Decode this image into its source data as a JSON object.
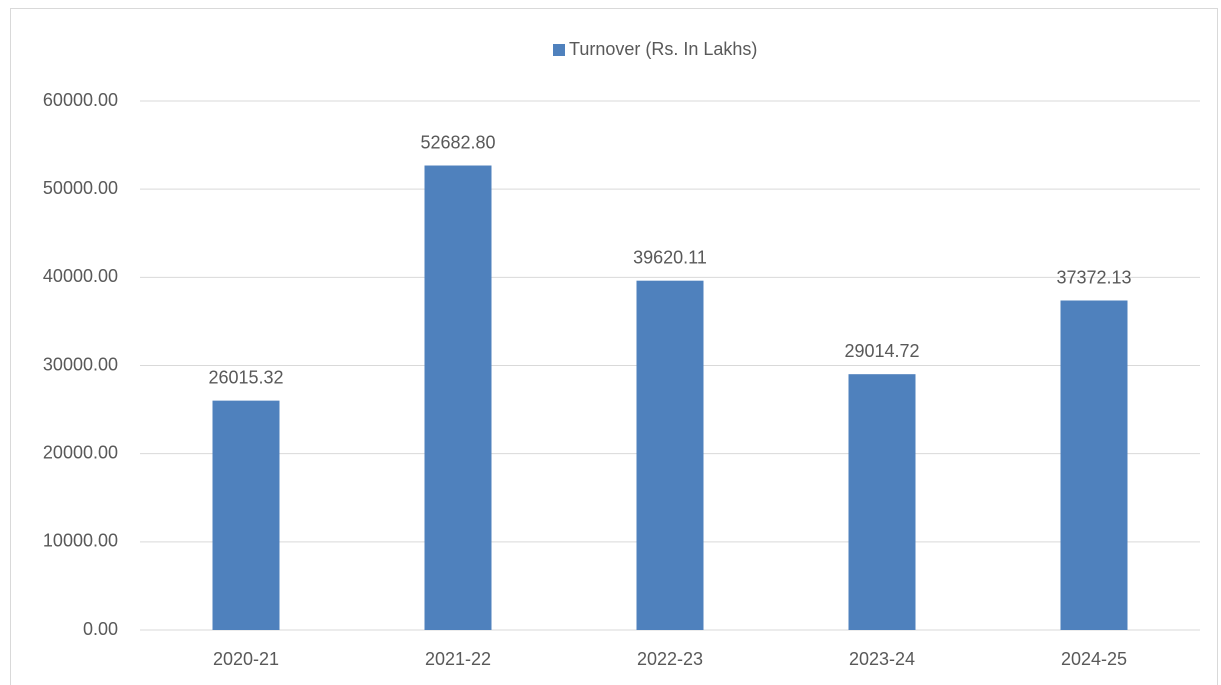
{
  "chart_data": {
    "type": "bar",
    "categories": [
      "2020-21",
      "2021-22",
      "2022-23",
      "2023-24",
      "2024-25"
    ],
    "series": [
      {
        "name": "Turnover (Rs. In Lakhs)",
        "color": "#4f81bd",
        "values": [
          26015.32,
          52682.8,
          39620.11,
          29014.72,
          37372.13
        ],
        "value_labels": [
          "26015.32",
          "52682.80",
          "39620.11",
          "29014.72",
          "37372.13"
        ]
      }
    ],
    "ylim": [
      0,
      60000
    ],
    "yticks": [
      {
        "value": 0,
        "label": "0.00"
      },
      {
        "value": 10000,
        "label": "10000.00"
      },
      {
        "value": 20000,
        "label": "20000.00"
      },
      {
        "value": 30000,
        "label": "30000.00"
      },
      {
        "value": 40000,
        "label": "40000.00"
      },
      {
        "value": 50000,
        "label": "50000.00"
      },
      {
        "value": 60000,
        "label": "60000.00"
      }
    ],
    "grid": true,
    "legend": "top"
  }
}
